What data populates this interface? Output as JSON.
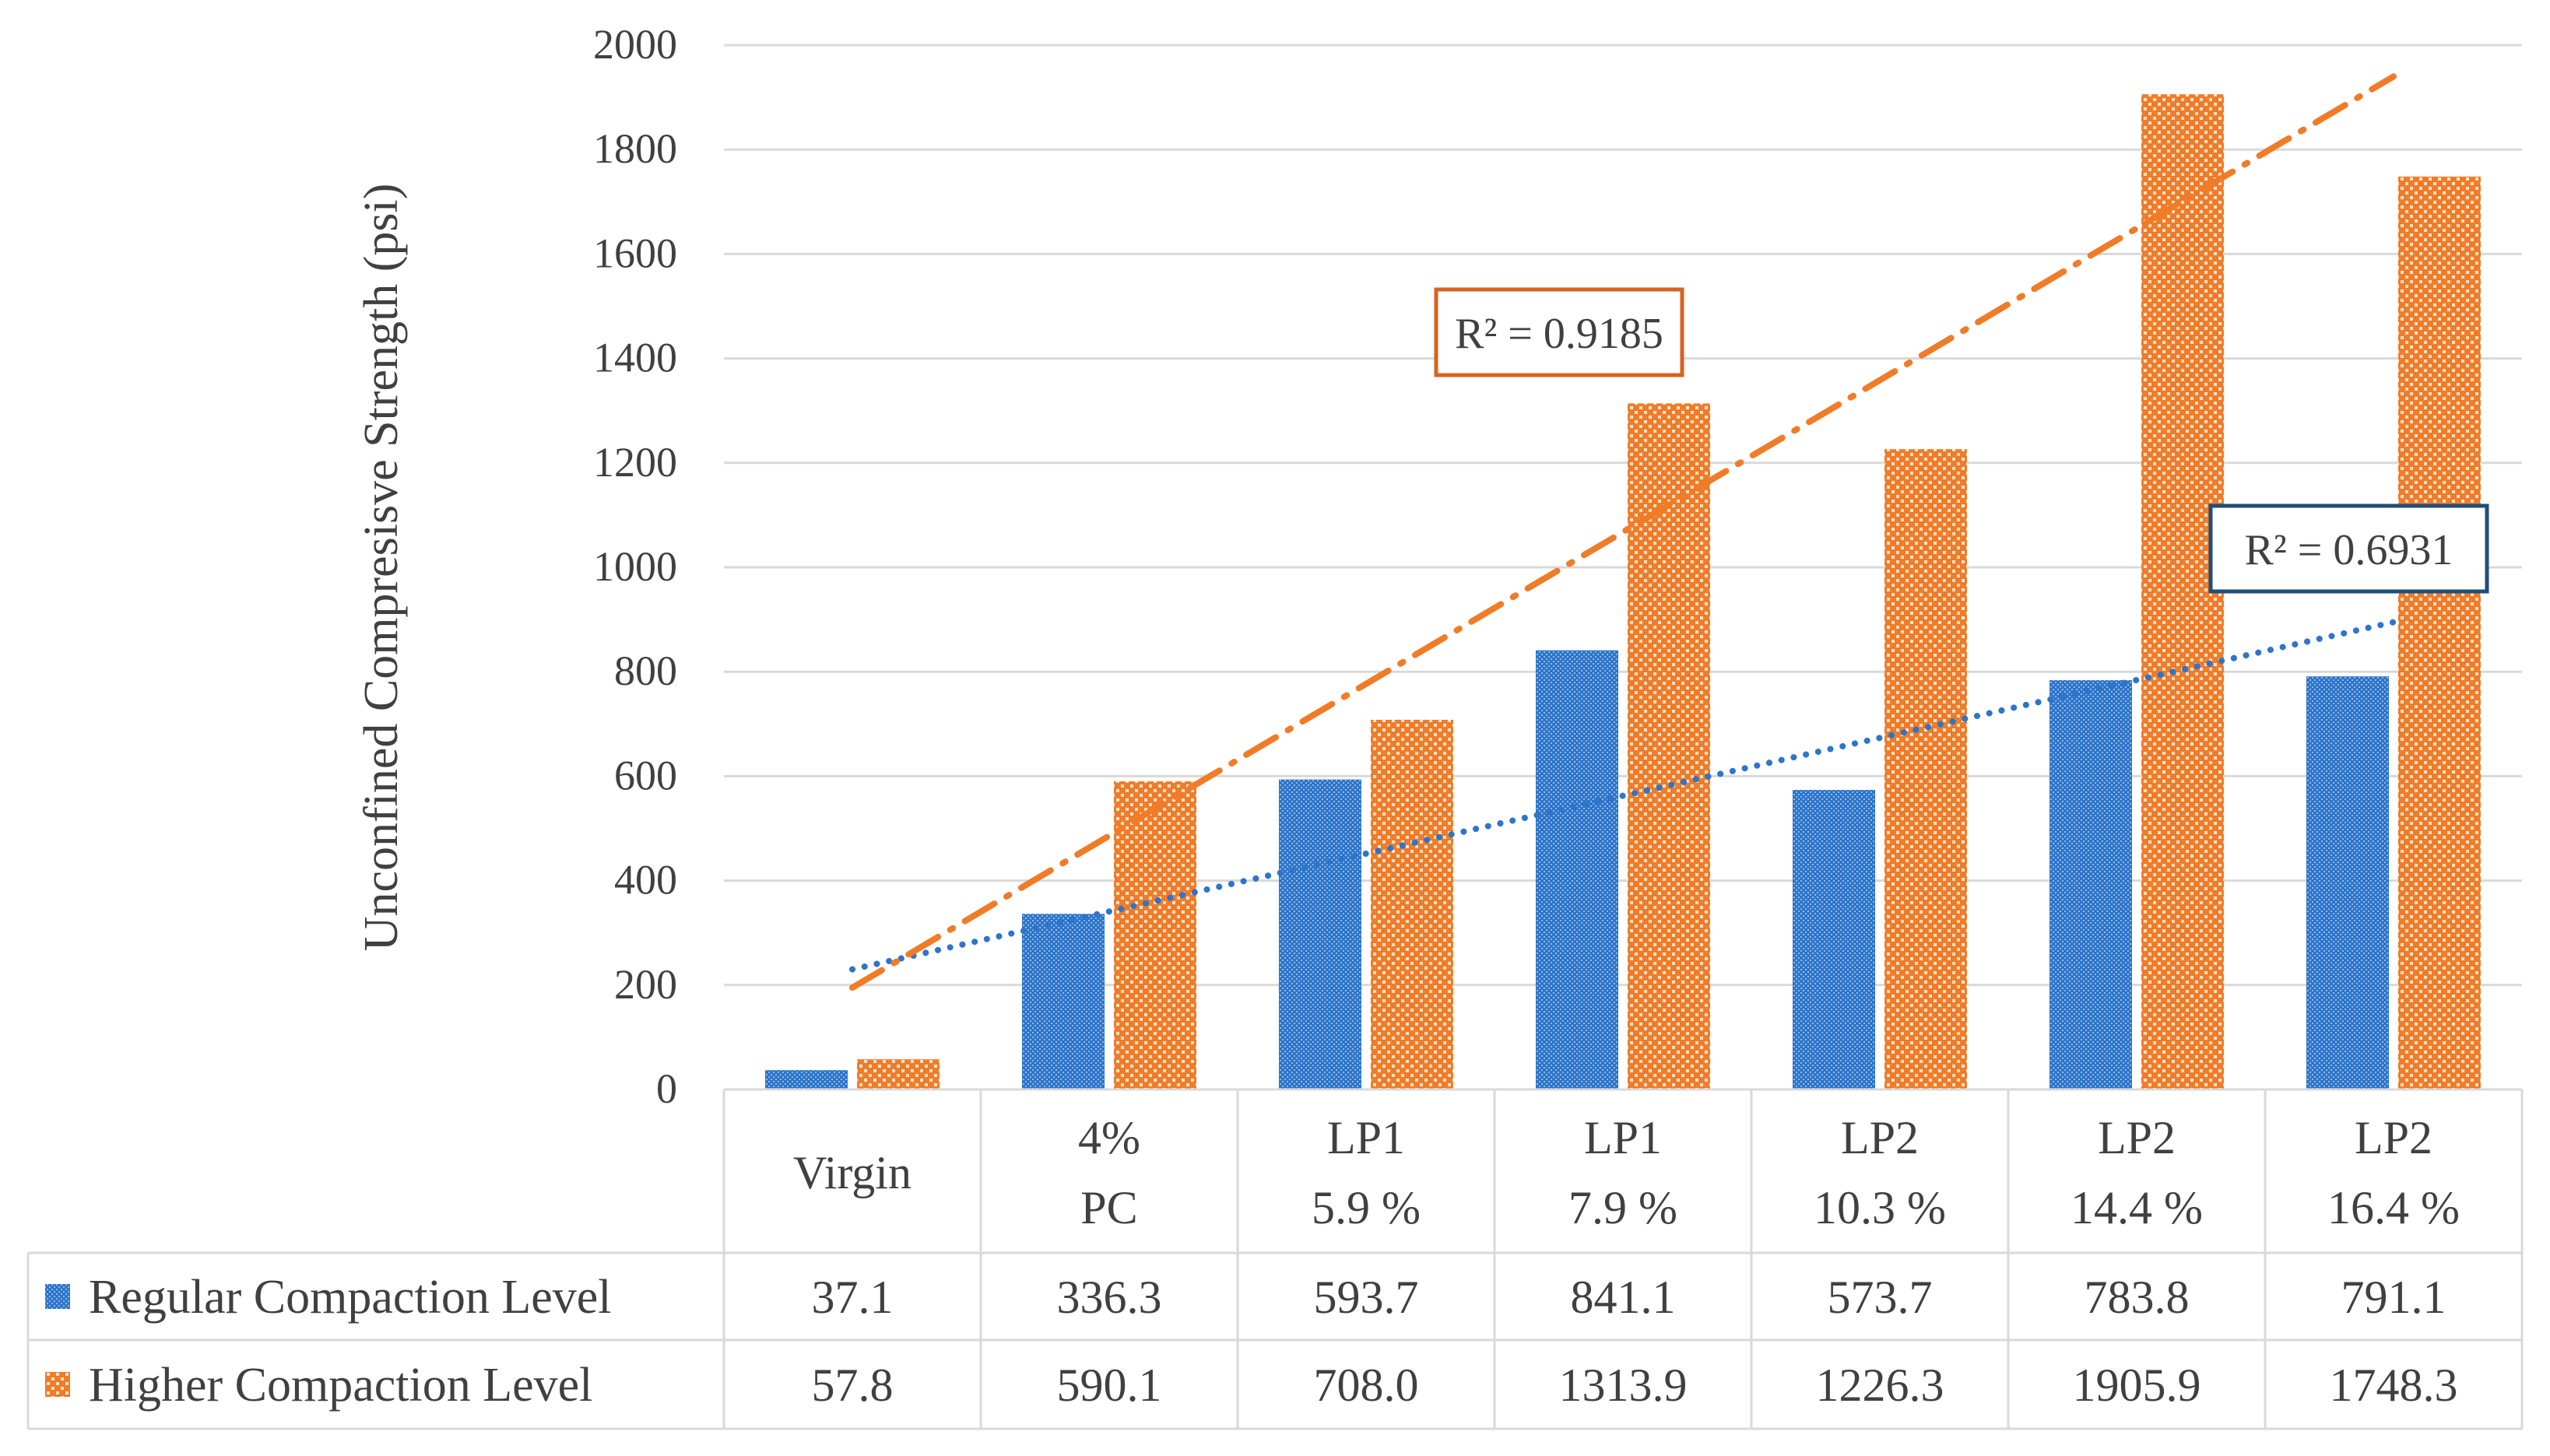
{
  "chart_data": {
    "type": "bar",
    "ylabel": "Unconfined Compresisve Strength (psi)",
    "ylim": [
      0,
      2000
    ],
    "yticks": [
      0,
      200,
      400,
      600,
      800,
      1000,
      1200,
      1400,
      1600,
      1800,
      2000
    ],
    "grid": "horizontal",
    "categories": [
      [
        "Virgin"
      ],
      [
        "4%",
        "PC"
      ],
      [
        "LP1",
        "5.9 %"
      ],
      [
        "LP1",
        "7.9 %"
      ],
      [
        "LP2",
        "10.3 %"
      ],
      [
        "LP2",
        "14.4 %"
      ],
      [
        "LP2",
        "16.4 %"
      ]
    ],
    "series": [
      {
        "name": "Regular Compaction Level",
        "color": "#2E75C9",
        "pattern": "dotted-fill",
        "values": [
          37.1,
          336.3,
          593.7,
          841.1,
          573.7,
          783.8,
          791.1
        ],
        "value_labels": [
          "37.1",
          "336.3",
          "593.7",
          "841.1",
          "573.7",
          "783.8",
          "791.1"
        ],
        "trendline": {
          "style": "dotted",
          "start_value": 230,
          "end_value": 895,
          "r2_label": "R² = 0.6931"
        }
      },
      {
        "name": "Higher Compaction Level",
        "color": "#F07C28",
        "pattern": "checker-fill",
        "values": [
          57.8,
          590.1,
          708.0,
          1313.9,
          1226.3,
          1905.9,
          1748.3
        ],
        "value_labels": [
          "57.8",
          "590.1",
          "708.0",
          "1313.9",
          "1226.3",
          "1905.9",
          "1748.3"
        ],
        "trendline": {
          "style": "dash-dot",
          "start_value": 195,
          "end_value": 1940,
          "r2_label": "R² = 0.9185"
        }
      }
    ],
    "data_table": true
  }
}
